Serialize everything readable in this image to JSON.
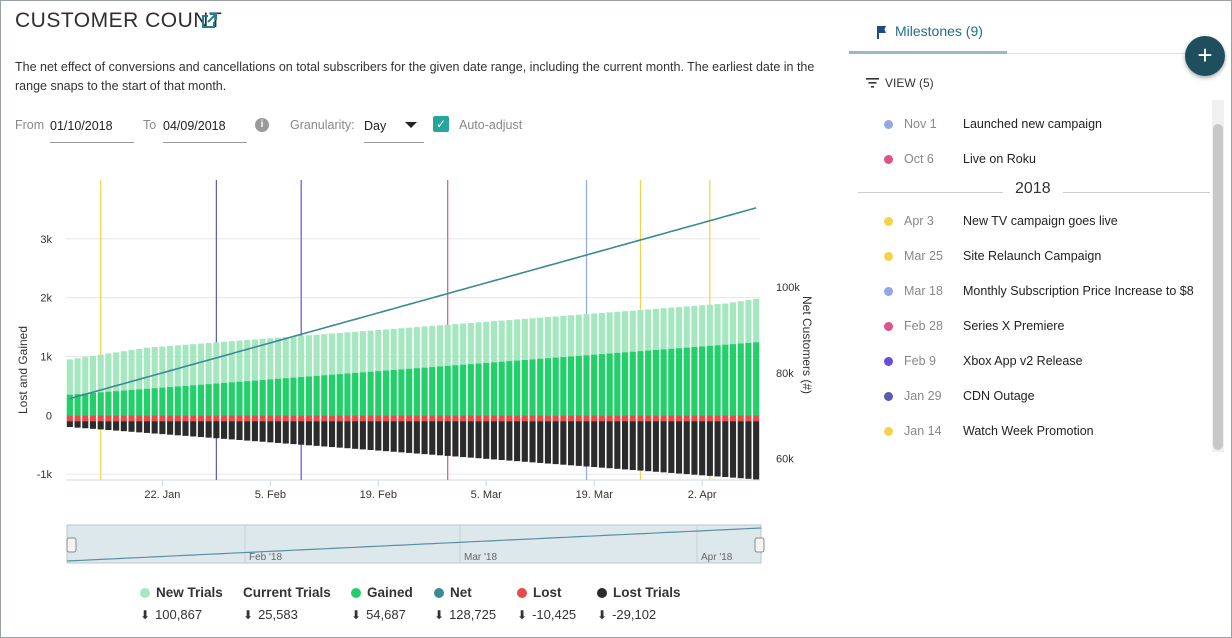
{
  "header": {
    "title": "CUSTOMER COUNT",
    "description": "The net effect of conversions and cancellations on total subscribers for the given date range, including the current month. The earliest date in the range snaps to the start of that month."
  },
  "controls": {
    "from_label": "From",
    "from_value": "01/10/2018",
    "to_label": "To",
    "to_value": "04/09/2018",
    "info_glyph": "i",
    "granularity_label": "Granularity:",
    "granularity_value": "Day",
    "auto_adjust_label": "Auto-adjust",
    "auto_adjust_checked": true
  },
  "chart_data": {
    "type": "bar",
    "left_axis": {
      "label": "Lost and Gained",
      "ticks": [
        "-1k",
        "0",
        "1k",
        "2k",
        "3k"
      ],
      "ylim": [
        -1100,
        4000
      ]
    },
    "right_axis": {
      "label": "Net Customers (#)",
      "ticks": [
        "60k",
        "80k",
        "100k"
      ],
      "ylim": [
        55000,
        125000
      ]
    },
    "x_ticks": [
      "22. Jan",
      "5. Feb",
      "19. Feb",
      "5. Mar",
      "19. Mar",
      "2. Apr"
    ],
    "navigator_ticks": [
      "Feb '18",
      "Mar '18",
      "Apr '18"
    ],
    "milestone_lines": [
      {
        "date": "Jan 14",
        "color": "#f5d24b"
      },
      {
        "date": "Jan 29",
        "color": "#5a5ab0"
      },
      {
        "date": "Feb 9",
        "color": "#6a4ed8"
      },
      {
        "date": "Feb 28",
        "color": "#e0508a"
      },
      {
        "date": "Mar 18",
        "color": "#90a8e8"
      },
      {
        "date": "Mar 25",
        "color": "#f5d24b"
      },
      {
        "date": "Apr 3",
        "color": "#f5d24b"
      }
    ],
    "days": 90,
    "series": [
      {
        "name": "New Trials",
        "color": "#a5e8c0",
        "values": [
          950,
          970,
          990,
          1010,
          1030,
          1050,
          1070,
          1090,
          1110,
          1130,
          1150,
          1160,
          1170,
          1180,
          1190,
          1200,
          1210,
          1220,
          1230,
          1240,
          1250,
          1260,
          1270,
          1280,
          1290,
          1300,
          1310,
          1320,
          1330,
          1340,
          1350,
          1360,
          1370,
          1380,
          1390,
          1400,
          1410,
          1420,
          1430,
          1440,
          1450,
          1460,
          1470,
          1480,
          1490,
          1500,
          1510,
          1520,
          1530,
          1540,
          1550,
          1560,
          1570,
          1580,
          1590,
          1600,
          1610,
          1620,
          1630,
          1640,
          1650,
          1660,
          1670,
          1680,
          1690,
          1700,
          1710,
          1720,
          1730,
          1740,
          1750,
          1760,
          1770,
          1780,
          1790,
          1800,
          1810,
          1820,
          1830,
          1840,
          1850,
          1860,
          1870,
          1880,
          1890,
          1900,
          1920,
          1940,
          1960,
          1980
        ]
      },
      {
        "name": "Gained",
        "color": "#22d06a",
        "values": [
          350,
          360,
          370,
          380,
          390,
          400,
          410,
          420,
          430,
          440,
          450,
          460,
          470,
          480,
          490,
          500,
          510,
          520,
          530,
          540,
          550,
          560,
          570,
          580,
          590,
          600,
          610,
          620,
          630,
          640,
          650,
          660,
          670,
          680,
          690,
          700,
          710,
          720,
          730,
          740,
          750,
          760,
          770,
          780,
          790,
          800,
          810,
          820,
          830,
          840,
          850,
          860,
          870,
          880,
          890,
          900,
          910,
          920,
          930,
          940,
          950,
          960,
          970,
          980,
          990,
          1000,
          1010,
          1020,
          1030,
          1040,
          1050,
          1060,
          1070,
          1080,
          1090,
          1100,
          1110,
          1120,
          1130,
          1140,
          1150,
          1160,
          1170,
          1180,
          1190,
          1200,
          1210,
          1220,
          1230,
          1240
        ]
      },
      {
        "name": "Lost",
        "color": "#e84a4a",
        "values": [
          -100,
          -100,
          -100,
          -100,
          -100,
          -100,
          -100,
          -100,
          -100,
          -100,
          -100,
          -100,
          -100,
          -100,
          -100,
          -100,
          -100,
          -100,
          -100,
          -100,
          -100,
          -100,
          -100,
          -100,
          -100,
          -100,
          -100,
          -100,
          -100,
          -100,
          -100,
          -100,
          -100,
          -100,
          -100,
          -100,
          -100,
          -100,
          -100,
          -100,
          -100,
          -100,
          -100,
          -100,
          -100,
          -100,
          -100,
          -100,
          -100,
          -100,
          -100,
          -100,
          -100,
          -100,
          -100,
          -100,
          -100,
          -100,
          -100,
          -100,
          -100,
          -100,
          -100,
          -100,
          -100,
          -100,
          -100,
          -100,
          -100,
          -100,
          -100,
          -100,
          -100,
          -100,
          -100,
          -100,
          -100,
          -100,
          -100,
          -100,
          -100,
          -100,
          -100,
          -100,
          -100,
          -100,
          -100,
          -100,
          -100,
          -100
        ]
      },
      {
        "name": "Lost Trials",
        "color": "#2b2b2b",
        "values": [
          -200,
          -210,
          -220,
          -230,
          -240,
          -250,
          -260,
          -270,
          -280,
          -290,
          -300,
          -310,
          -320,
          -330,
          -340,
          -350,
          -360,
          -370,
          -380,
          -390,
          -400,
          -410,
          -420,
          -430,
          -440,
          -450,
          -460,
          -470,
          -480,
          -490,
          -500,
          -510,
          -520,
          -530,
          -540,
          -550,
          -560,
          -570,
          -580,
          -590,
          -600,
          -610,
          -620,
          -630,
          -640,
          -650,
          -660,
          -670,
          -680,
          -690,
          -700,
          -710,
          -720,
          -730,
          -740,
          -750,
          -760,
          -770,
          -780,
          -790,
          -800,
          -810,
          -820,
          -830,
          -840,
          -850,
          -860,
          -870,
          -880,
          -890,
          -900,
          -910,
          -920,
          -930,
          -940,
          -950,
          -960,
          -970,
          -980,
          -990,
          -1000,
          -1010,
          -1020,
          -1030,
          -1040,
          -1050,
          -1060,
          -1070,
          -1080,
          -1090
        ]
      },
      {
        "name": "Net",
        "color": "#3a8a95",
        "axis": "right",
        "values": [
          74000,
          74500,
          75000,
          75500,
          76000,
          76500,
          77000,
          77500,
          78000,
          78500,
          79000,
          79500,
          80000,
          80500,
          81000,
          81500,
          82000,
          82500,
          83000,
          83500,
          84000,
          84500,
          85000,
          85500,
          86000,
          86500,
          87000,
          87500,
          88000,
          88500,
          89000,
          89500,
          90000,
          90500,
          91000,
          91500,
          92000,
          92500,
          93000,
          93500,
          94000,
          94500,
          95000,
          95500,
          96000,
          96500,
          97000,
          97500,
          98000,
          98500,
          99000,
          99500,
          100000,
          100500,
          101000,
          101500,
          102000,
          102500,
          103000,
          103500,
          104000,
          104500,
          105000,
          105500,
          106000,
          106500,
          107000,
          107500,
          108000,
          108500,
          109000,
          109500,
          110000,
          110500,
          111000,
          111500,
          112000,
          112500,
          113000,
          113500,
          114000,
          114500,
          115000,
          115500,
          116000,
          116500,
          117000,
          117500,
          118000,
          118500
        ]
      }
    ]
  },
  "legend": [
    {
      "name": "New Trials",
      "value": "100,867",
      "color": "#a5e8c0"
    },
    {
      "name": "Current Trials",
      "value": "25,583",
      "color": ""
    },
    {
      "name": "Gained",
      "value": "54,687",
      "color": "#22d06a"
    },
    {
      "name": "Net",
      "value": "128,725",
      "color": "#3a8a95"
    },
    {
      "name": "Lost",
      "value": "-10,425",
      "color": "#e84a4a"
    },
    {
      "name": "Lost Trials",
      "value": "-29,102",
      "color": "#2b2b2b"
    }
  ],
  "download_glyph": "⬇",
  "sidebar": {
    "tab_label": "Milestones (9)",
    "add_label": "+",
    "view_label": "VIEW (5)",
    "year_divider": "2018",
    "milestones_before": [
      {
        "date": "Nov 1",
        "label": "Launched new campaign",
        "color": "#90a8e8"
      },
      {
        "date": "Oct 6",
        "label": "Live on Roku",
        "color": "#e0508a"
      }
    ],
    "milestones_2018": [
      {
        "date": "Apr 3",
        "label": "New TV campaign goes live",
        "color": "#f5d24b"
      },
      {
        "date": "Mar 25",
        "label": "Site Relaunch Campaign",
        "color": "#f5d24b"
      },
      {
        "date": "Mar 18",
        "label": "Monthly Subscription Price Increase to $8",
        "color": "#90a8e8"
      },
      {
        "date": "Feb 28",
        "label": "Series X Premiere",
        "color": "#e0508a"
      },
      {
        "date": "Feb 9",
        "label": "Xbox App v2 Release",
        "color": "#6a4ed8"
      },
      {
        "date": "Jan 29",
        "label": "CDN Outage",
        "color": "#5a5ab0"
      },
      {
        "date": "Jan 14",
        "label": "Watch Week Promotion",
        "color": "#f5d24b"
      }
    ]
  }
}
